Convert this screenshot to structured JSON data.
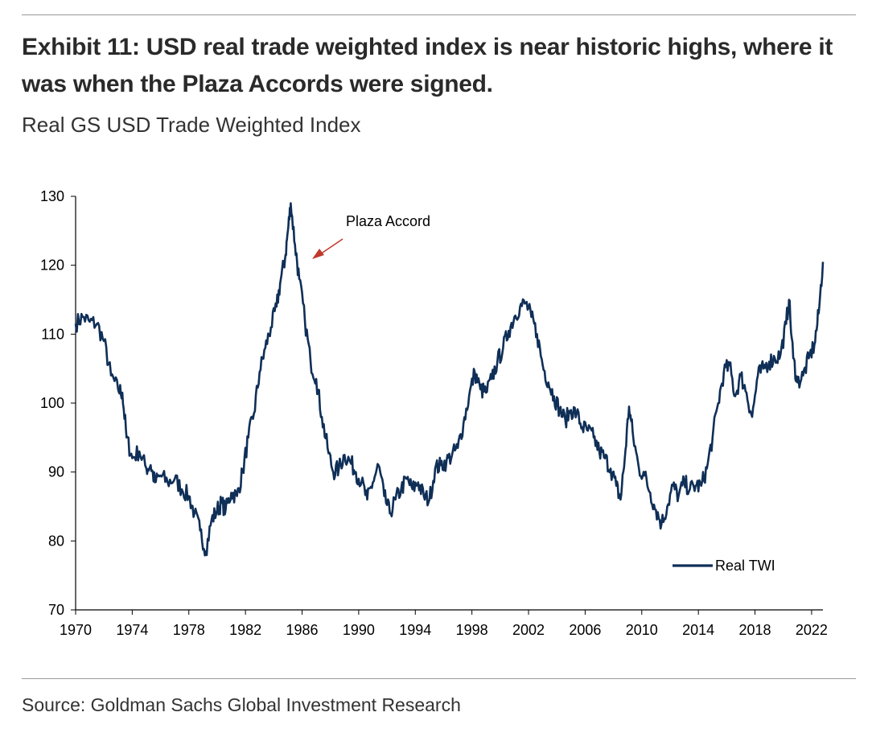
{
  "header": {
    "title": "Exhibit 11: USD real trade weighted index is near historic highs, where it was when the Plaza Accords were signed.",
    "subtitle": "Real GS USD Trade Weighted Index"
  },
  "footer": {
    "source": "Source: Goldman Sachs Global Investment Research"
  },
  "colors": {
    "series": "#0f2f57",
    "arrow": "#c0392b",
    "axis": "#000000",
    "rule": "#9a9a9a"
  },
  "chart_data": {
    "type": "line",
    "title": "",
    "xlabel": "",
    "ylabel": "",
    "xlim": [
      1970,
      2022.8
    ],
    "ylim": [
      70,
      130
    ],
    "grid": false,
    "legend_position": "bottom-right",
    "x_ticks": [
      1970,
      1974,
      1978,
      1982,
      1986,
      1990,
      1994,
      1998,
      2002,
      2006,
      2010,
      2014,
      2018,
      2022
    ],
    "x_tick_labels": [
      "1970",
      "1974",
      "1978",
      "1982",
      "1986",
      "1990",
      "1994",
      "1998",
      "2002",
      "2006",
      "2010",
      "2014",
      "2018",
      "2022"
    ],
    "y_ticks": [
      70,
      80,
      90,
      100,
      110,
      120,
      130
    ],
    "y_tick_labels": [
      "70",
      "80",
      "90",
      "100",
      "110",
      "120",
      "130"
    ],
    "annotation": {
      "text": "Plaza Accord",
      "x": 1985.2,
      "y": 122
    },
    "series": [
      {
        "name": "Real TWI",
        "x": [
          1970.0,
          1970.5,
          1971.0,
          1971.5,
          1972.0,
          1972.5,
          1973.0,
          1973.3,
          1973.6,
          1974.0,
          1974.5,
          1975.0,
          1975.3,
          1975.6,
          1976.0,
          1976.5,
          1977.0,
          1977.5,
          1978.0,
          1978.4,
          1978.8,
          1979.2,
          1979.6,
          1980.0,
          1980.3,
          1980.6,
          1981.0,
          1981.4,
          1981.8,
          1982.2,
          1982.6,
          1983.0,
          1983.4,
          1983.8,
          1984.2,
          1984.5,
          1984.8,
          1985.0,
          1985.2,
          1985.5,
          1985.8,
          1986.2,
          1986.6,
          1987.0,
          1987.4,
          1987.8,
          1988.2,
          1988.6,
          1989.0,
          1989.4,
          1989.8,
          1990.2,
          1990.6,
          1991.0,
          1991.4,
          1991.8,
          1992.2,
          1992.6,
          1993.0,
          1993.4,
          1993.8,
          1994.2,
          1994.6,
          1995.0,
          1995.4,
          1995.8,
          1996.2,
          1996.6,
          1997.0,
          1997.4,
          1997.8,
          1998.2,
          1998.6,
          1999.0,
          1999.4,
          1999.8,
          2000.2,
          2000.6,
          2001.0,
          2001.4,
          2001.8,
          2002.2,
          2002.6,
          2003.0,
          2003.4,
          2003.8,
          2004.2,
          2004.6,
          2005.0,
          2005.4,
          2005.8,
          2006.2,
          2006.6,
          2007.0,
          2007.4,
          2007.8,
          2008.2,
          2008.5,
          2008.8,
          2009.1,
          2009.4,
          2009.8,
          2010.2,
          2010.6,
          2011.0,
          2011.4,
          2011.8,
          2012.2,
          2012.6,
          2013.0,
          2013.4,
          2013.8,
          2014.2,
          2014.6,
          2015.0,
          2015.4,
          2015.8,
          2016.2,
          2016.6,
          2017.0,
          2017.4,
          2017.8,
          2018.2,
          2018.6,
          2019.0,
          2019.4,
          2019.8,
          2020.2,
          2020.4,
          2020.7,
          2021.0,
          2021.4,
          2021.8,
          2022.2,
          2022.5,
          2022.8
        ],
        "y": [
          111.5,
          112.5,
          111.8,
          111.5,
          109.0,
          104.0,
          102.0,
          101.5,
          95.0,
          92.0,
          93.0,
          90.5,
          91.0,
          88.5,
          89.5,
          88.5,
          89.0,
          87.5,
          86.5,
          84.0,
          81.5,
          78.5,
          83.0,
          84.5,
          85.5,
          84.5,
          87.0,
          86.5,
          90.0,
          95.0,
          98.5,
          104.5,
          108.0,
          111.0,
          114.0,
          118.0,
          121.0,
          125.0,
          129.0,
          123.0,
          118.0,
          112.0,
          106.0,
          103.5,
          98.0,
          93.5,
          90.0,
          90.5,
          92.5,
          91.5,
          90.0,
          88.5,
          86.0,
          88.5,
          91.0,
          86.5,
          84.0,
          86.0,
          87.5,
          89.0,
          87.5,
          88.5,
          86.5,
          86.0,
          90.5,
          91.0,
          91.5,
          92.5,
          93.5,
          97.0,
          101.0,
          104.5,
          102.0,
          101.5,
          103.5,
          106.0,
          108.0,
          110.5,
          112.5,
          114.0,
          114.5,
          112.5,
          110.0,
          105.5,
          103.0,
          101.0,
          99.0,
          97.5,
          99.0,
          98.5,
          96.5,
          96.0,
          95.0,
          93.0,
          92.0,
          90.5,
          88.0,
          86.0,
          92.0,
          99.5,
          95.0,
          90.5,
          89.5,
          87.0,
          84.5,
          82.5,
          85.0,
          88.0,
          86.5,
          88.5,
          87.5,
          88.0,
          88.0,
          90.5,
          95.0,
          100.0,
          104.5,
          105.5,
          101.0,
          104.0,
          101.5,
          98.0,
          104.0,
          105.0,
          106.0,
          106.5,
          107.0,
          111.5,
          115.0,
          106.5,
          103.0,
          104.0,
          106.5,
          108.5,
          113.0,
          120.5
        ]
      }
    ]
  }
}
